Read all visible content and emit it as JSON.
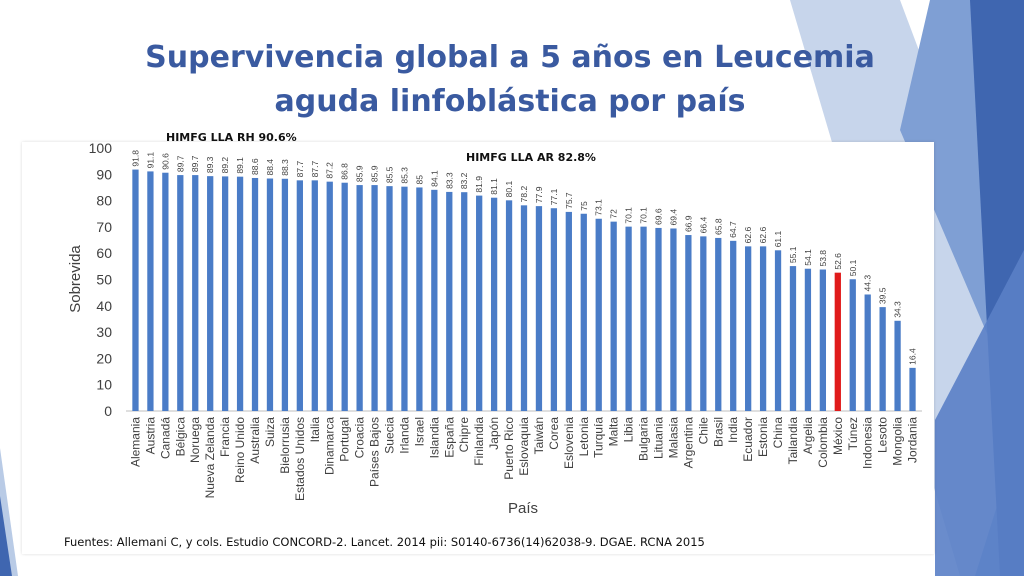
{
  "slide": {
    "title_line1": "Supervivencia global a 5 años en Leucemia",
    "title_line2": "aguda linfoblástica por país",
    "annotation_rh": "HIMFG LLA RH 90.6%",
    "annotation_ar": "HIMFG LLA AR 82.8%",
    "source": "Fuentes: Allemani C, y cols. Estudio CONCORD-2. Lancet. 2014 pii: S0140-6736(14)62038-9. DGAE. RCNA 2015"
  },
  "colors": {
    "bar": "#4a7cc7",
    "highlight": "#e01b1b",
    "title": "#3a5aa0",
    "deco_light": "#b9cbe6",
    "deco_mid": "#7f9fd4",
    "deco_dark": "#3f66b0"
  },
  "chart_data": {
    "type": "bar",
    "title": "",
    "xlabel": "País",
    "ylabel": "Sobrevida",
    "ylim": [
      0,
      100
    ],
    "yticks": [
      0,
      10,
      20,
      30,
      40,
      50,
      60,
      70,
      80,
      90,
      100
    ],
    "grid": false,
    "highlight_category": "México",
    "categories": [
      "Alemania",
      "Austria",
      "Canadá",
      "Bélgica",
      "Noruega",
      "Nueva Zelanda",
      "Francia",
      "Reino Unido",
      "Australia",
      "Suiza",
      "Bielorrusia",
      "Estados Unidos",
      "Italia",
      "Dinamarca",
      "Portugal",
      "Croacia",
      "Países Bajos",
      "Suecia",
      "Irlanda",
      "Israel",
      "Islandia",
      "España",
      "Chipre",
      "Finlandia",
      "Japón",
      "Puerto Rico",
      "Eslovaquia",
      "Taiwán",
      "Corea",
      "Eslovenia",
      "Letonia",
      "Turquía",
      "Malta",
      "Libia",
      "Bulgaria",
      "Lituania",
      "Malasia",
      "Argentina",
      "Chile",
      "Brasil",
      "India",
      "Ecuador",
      "Estonia",
      "China",
      "Tailandia",
      "Argelia",
      "Colombia",
      "México",
      "Túnez",
      "Indonesia",
      "Lesoto",
      "Mongolia",
      "Jordania"
    ],
    "values": [
      91.8,
      91.1,
      90.6,
      89.7,
      89.7,
      89.3,
      89.2,
      89.1,
      88.6,
      88.4,
      88.3,
      87.7,
      87.7,
      87.2,
      86.8,
      85.9,
      85.9,
      85.5,
      85.3,
      85,
      84.1,
      83.3,
      83.2,
      81.9,
      81.1,
      80.1,
      78.2,
      77.9,
      77.1,
      75.7,
      75,
      73.1,
      72,
      70.1,
      70.1,
      69.6,
      69.4,
      66.9,
      66.4,
      65.8,
      64.7,
      62.6,
      62.6,
      61.1,
      55.1,
      54.1,
      53.8,
      52.6,
      50.1,
      44.3,
      39.5,
      34.3,
      16.4
    ],
    "value_labels": [
      "91.8",
      "91.1",
      "90.6",
      "89.7",
      "89.7",
      "89.3",
      "89.2",
      "89.1",
      "88.6",
      "88.4",
      "88.3",
      "87.7",
      "87.7",
      "87.2",
      "86.8",
      "85.9",
      "85.9",
      "85.5",
      "85.3",
      "85",
      "84.1",
      "83.3",
      "83.2",
      "81.9",
      "81.1",
      "80.1",
      "78.2",
      "77.9",
      "77.1",
      "75.7",
      "75",
      "73.1",
      "72",
      "70.1",
      "70.1",
      "69.6",
      "69.4",
      "66.9",
      "66.4",
      "65.8",
      "64.7",
      "62.6",
      "62.6",
      "61.1",
      "55.1",
      "54.1",
      "53.8",
      "52.6",
      "50.1",
      "44.3",
      "39.5",
      "34.3",
      "16.4"
    ]
  }
}
